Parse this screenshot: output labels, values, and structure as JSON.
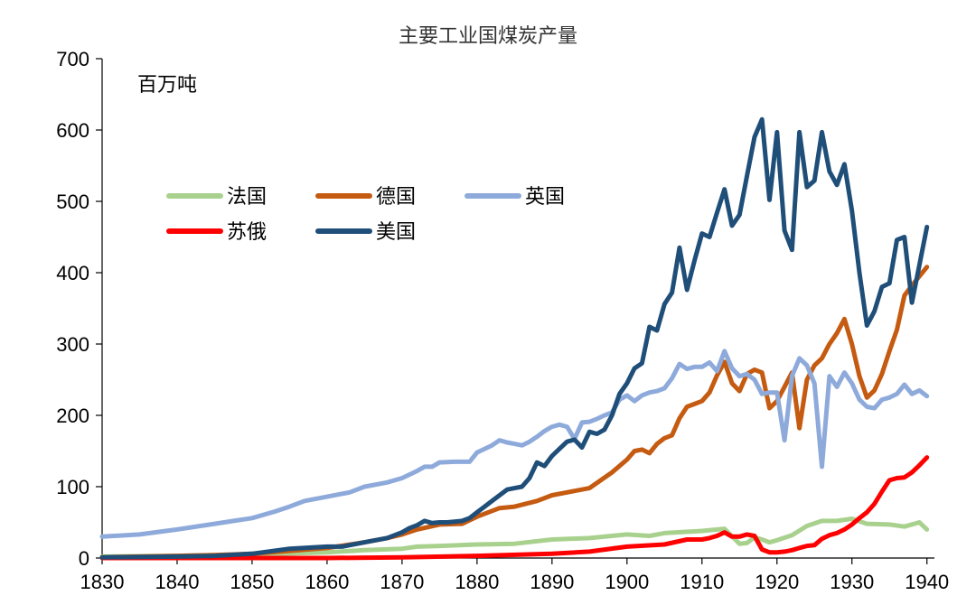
{
  "chart_data": {
    "type": "line",
    "title": "主要工业国煤炭产量",
    "unit_label": "百万吨",
    "xlabel": "",
    "ylabel": "",
    "xlim": [
      1830,
      1941
    ],
    "ylim": [
      0,
      700
    ],
    "x_ticks": [
      1830,
      1840,
      1850,
      1860,
      1870,
      1880,
      1890,
      1900,
      1910,
      1920,
      1930,
      1940
    ],
    "y_ticks": [
      0,
      100,
      200,
      300,
      400,
      500,
      600,
      700
    ],
    "grid": false,
    "legend_position": "upper-left",
    "series": [
      {
        "name": "法国",
        "color": "#a9d18e",
        "points": [
          [
            1830,
            2
          ],
          [
            1840,
            3
          ],
          [
            1850,
            5
          ],
          [
            1860,
            8
          ],
          [
            1865,
            11
          ],
          [
            1870,
            13
          ],
          [
            1872,
            16
          ],
          [
            1875,
            17
          ],
          [
            1880,
            19
          ],
          [
            1885,
            20
          ],
          [
            1890,
            26
          ],
          [
            1895,
            28
          ],
          [
            1900,
            33
          ],
          [
            1903,
            31
          ],
          [
            1905,
            35
          ],
          [
            1910,
            38
          ],
          [
            1913,
            41
          ],
          [
            1915,
            20
          ],
          [
            1916,
            21
          ],
          [
            1917,
            29
          ],
          [
            1918,
            26
          ],
          [
            1919,
            22
          ],
          [
            1920,
            25
          ],
          [
            1922,
            32
          ],
          [
            1924,
            45
          ],
          [
            1926,
            52
          ],
          [
            1928,
            52
          ],
          [
            1930,
            55
          ],
          [
            1932,
            48
          ],
          [
            1935,
            47
          ],
          [
            1937,
            44
          ],
          [
            1939,
            50
          ],
          [
            1940,
            40
          ]
        ]
      },
      {
        "name": "德国",
        "color": "#c55a11",
        "points": [
          [
            1830,
            1
          ],
          [
            1840,
            3
          ],
          [
            1845,
            4
          ],
          [
            1850,
            6
          ],
          [
            1855,
            10
          ],
          [
            1860,
            14
          ],
          [
            1865,
            22
          ],
          [
            1868,
            28
          ],
          [
            1870,
            33
          ],
          [
            1872,
            40
          ],
          [
            1875,
            47
          ],
          [
            1878,
            48
          ],
          [
            1880,
            58
          ],
          [
            1883,
            70
          ],
          [
            1885,
            72
          ],
          [
            1888,
            80
          ],
          [
            1890,
            88
          ],
          [
            1892,
            92
          ],
          [
            1895,
            98
          ],
          [
            1898,
            120
          ],
          [
            1900,
            138
          ],
          [
            1901,
            150
          ],
          [
            1902,
            152
          ],
          [
            1903,
            147
          ],
          [
            1904,
            160
          ],
          [
            1905,
            168
          ],
          [
            1906,
            172
          ],
          [
            1907,
            196
          ],
          [
            1908,
            212
          ],
          [
            1909,
            216
          ],
          [
            1910,
            220
          ],
          [
            1911,
            232
          ],
          [
            1912,
            256
          ],
          [
            1913,
            275
          ],
          [
            1914,
            245
          ],
          [
            1915,
            234
          ],
          [
            1916,
            258
          ],
          [
            1917,
            264
          ],
          [
            1918,
            260
          ],
          [
            1919,
            210
          ],
          [
            1920,
            220
          ],
          [
            1921,
            240
          ],
          [
            1922,
            260
          ],
          [
            1923,
            182
          ],
          [
            1924,
            250
          ],
          [
            1925,
            270
          ],
          [
            1926,
            280
          ],
          [
            1927,
            300
          ],
          [
            1928,
            315
          ],
          [
            1929,
            335
          ],
          [
            1930,
            300
          ],
          [
            1931,
            255
          ],
          [
            1932,
            225
          ],
          [
            1933,
            235
          ],
          [
            1934,
            258
          ],
          [
            1935,
            290
          ],
          [
            1936,
            320
          ],
          [
            1937,
            368
          ],
          [
            1938,
            382
          ],
          [
            1939,
            395
          ],
          [
            1940,
            408
          ]
        ]
      },
      {
        "name": "英国",
        "color": "#8eaadb",
        "points": [
          [
            1830,
            30
          ],
          [
            1835,
            33
          ],
          [
            1840,
            40
          ],
          [
            1845,
            48
          ],
          [
            1850,
            56
          ],
          [
            1853,
            65
          ],
          [
            1855,
            72
          ],
          [
            1857,
            80
          ],
          [
            1860,
            86
          ],
          [
            1863,
            92
          ],
          [
            1865,
            100
          ],
          [
            1868,
            106
          ],
          [
            1870,
            112
          ],
          [
            1872,
            122
          ],
          [
            1873,
            128
          ],
          [
            1874,
            128
          ],
          [
            1875,
            134
          ],
          [
            1877,
            135
          ],
          [
            1879,
            135
          ],
          [
            1880,
            148
          ],
          [
            1882,
            158
          ],
          [
            1883,
            165
          ],
          [
            1884,
            162
          ],
          [
            1885,
            160
          ],
          [
            1886,
            158
          ],
          [
            1887,
            163
          ],
          [
            1888,
            170
          ],
          [
            1889,
            178
          ],
          [
            1890,
            184
          ],
          [
            1891,
            187
          ],
          [
            1892,
            184
          ],
          [
            1893,
            167
          ],
          [
            1894,
            190
          ],
          [
            1895,
            191
          ],
          [
            1896,
            195
          ],
          [
            1897,
            200
          ],
          [
            1898,
            204
          ],
          [
            1899,
            222
          ],
          [
            1900,
            228
          ],
          [
            1901,
            220
          ],
          [
            1902,
            228
          ],
          [
            1903,
            232
          ],
          [
            1904,
            234
          ],
          [
            1905,
            238
          ],
          [
            1906,
            252
          ],
          [
            1907,
            272
          ],
          [
            1908,
            265
          ],
          [
            1909,
            268
          ],
          [
            1910,
            268
          ],
          [
            1911,
            274
          ],
          [
            1912,
            262
          ],
          [
            1913,
            290
          ],
          [
            1914,
            266
          ],
          [
            1915,
            255
          ],
          [
            1916,
            258
          ],
          [
            1917,
            250
          ],
          [
            1918,
            230
          ],
          [
            1919,
            232
          ],
          [
            1920,
            232
          ],
          [
            1921,
            165
          ],
          [
            1922,
            255
          ],
          [
            1923,
            280
          ],
          [
            1924,
            270
          ],
          [
            1925,
            245
          ],
          [
            1926,
            128
          ],
          [
            1927,
            255
          ],
          [
            1928,
            240
          ],
          [
            1929,
            260
          ],
          [
            1930,
            245
          ],
          [
            1931,
            222
          ],
          [
            1932,
            212
          ],
          [
            1933,
            210
          ],
          [
            1934,
            222
          ],
          [
            1935,
            225
          ],
          [
            1936,
            230
          ],
          [
            1937,
            243
          ],
          [
            1938,
            230
          ],
          [
            1939,
            235
          ],
          [
            1940,
            227
          ]
        ]
      },
      {
        "name": "苏俄",
        "color": "#ff0000",
        "points": [
          [
            1830,
            0
          ],
          [
            1860,
            0
          ],
          [
            1870,
            1
          ],
          [
            1880,
            3
          ],
          [
            1890,
            6
          ],
          [
            1895,
            9
          ],
          [
            1900,
            16
          ],
          [
            1905,
            19
          ],
          [
            1908,
            26
          ],
          [
            1910,
            26
          ],
          [
            1911,
            28
          ],
          [
            1912,
            31
          ],
          [
            1913,
            36
          ],
          [
            1914,
            30
          ],
          [
            1915,
            30
          ],
          [
            1916,
            33
          ],
          [
            1917,
            31
          ],
          [
            1918,
            12
          ],
          [
            1919,
            8
          ],
          [
            1920,
            8
          ],
          [
            1921,
            9
          ],
          [
            1922,
            11
          ],
          [
            1923,
            14
          ],
          [
            1924,
            17
          ],
          [
            1925,
            18
          ],
          [
            1926,
            27
          ],
          [
            1927,
            32
          ],
          [
            1928,
            35
          ],
          [
            1929,
            40
          ],
          [
            1930,
            47
          ],
          [
            1931,
            56
          ],
          [
            1932,
            64
          ],
          [
            1933,
            76
          ],
          [
            1934,
            93
          ],
          [
            1935,
            109
          ],
          [
            1936,
            112
          ],
          [
            1937,
            113
          ],
          [
            1938,
            120
          ],
          [
            1939,
            130
          ],
          [
            1940,
            141
          ]
        ]
      },
      {
        "name": "美国",
        "color": "#1f4e79",
        "points": [
          [
            1830,
            1
          ],
          [
            1840,
            2
          ],
          [
            1845,
            3
          ],
          [
            1850,
            6
          ],
          [
            1855,
            13
          ],
          [
            1860,
            16
          ],
          [
            1862,
            16
          ],
          [
            1865,
            22
          ],
          [
            1868,
            28
          ],
          [
            1870,
            36
          ],
          [
            1871,
            42
          ],
          [
            1872,
            46
          ],
          [
            1873,
            52
          ],
          [
            1874,
            49
          ],
          [
            1875,
            50
          ],
          [
            1876,
            50
          ],
          [
            1877,
            51
          ],
          [
            1878,
            52
          ],
          [
            1879,
            56
          ],
          [
            1880,
            64
          ],
          [
            1881,
            72
          ],
          [
            1882,
            80
          ],
          [
            1883,
            88
          ],
          [
            1884,
            96
          ],
          [
            1885,
            98
          ],
          [
            1886,
            100
          ],
          [
            1887,
            112
          ],
          [
            1888,
            134
          ],
          [
            1889,
            129
          ],
          [
            1890,
            143
          ],
          [
            1891,
            153
          ],
          [
            1892,
            163
          ],
          [
            1893,
            166
          ],
          [
            1894,
            155
          ],
          [
            1895,
            177
          ],
          [
            1896,
            174
          ],
          [
            1897,
            180
          ],
          [
            1898,
            200
          ],
          [
            1899,
            230
          ],
          [
            1900,
            245
          ],
          [
            1901,
            266
          ],
          [
            1902,
            273
          ],
          [
            1903,
            324
          ],
          [
            1904,
            319
          ],
          [
            1905,
            356
          ],
          [
            1906,
            372
          ],
          [
            1907,
            435
          ],
          [
            1908,
            376
          ],
          [
            1909,
            417
          ],
          [
            1910,
            455
          ],
          [
            1911,
            450
          ],
          [
            1912,
            484
          ],
          [
            1913,
            517
          ],
          [
            1914,
            466
          ],
          [
            1915,
            481
          ],
          [
            1916,
            536
          ],
          [
            1917,
            590
          ],
          [
            1918,
            615
          ],
          [
            1919,
            502
          ],
          [
            1920,
            597
          ],
          [
            1921,
            459
          ],
          [
            1922,
            432
          ],
          [
            1923,
            597
          ],
          [
            1924,
            520
          ],
          [
            1925,
            529
          ],
          [
            1926,
            597
          ],
          [
            1927,
            542
          ],
          [
            1928,
            523
          ],
          [
            1929,
            552
          ],
          [
            1930,
            487
          ],
          [
            1931,
            400
          ],
          [
            1932,
            326
          ],
          [
            1933,
            346
          ],
          [
            1934,
            380
          ],
          [
            1935,
            385
          ],
          [
            1936,
            446
          ],
          [
            1937,
            450
          ],
          [
            1938,
            358
          ],
          [
            1939,
            411
          ],
          [
            1940,
            464
          ]
        ]
      }
    ]
  }
}
